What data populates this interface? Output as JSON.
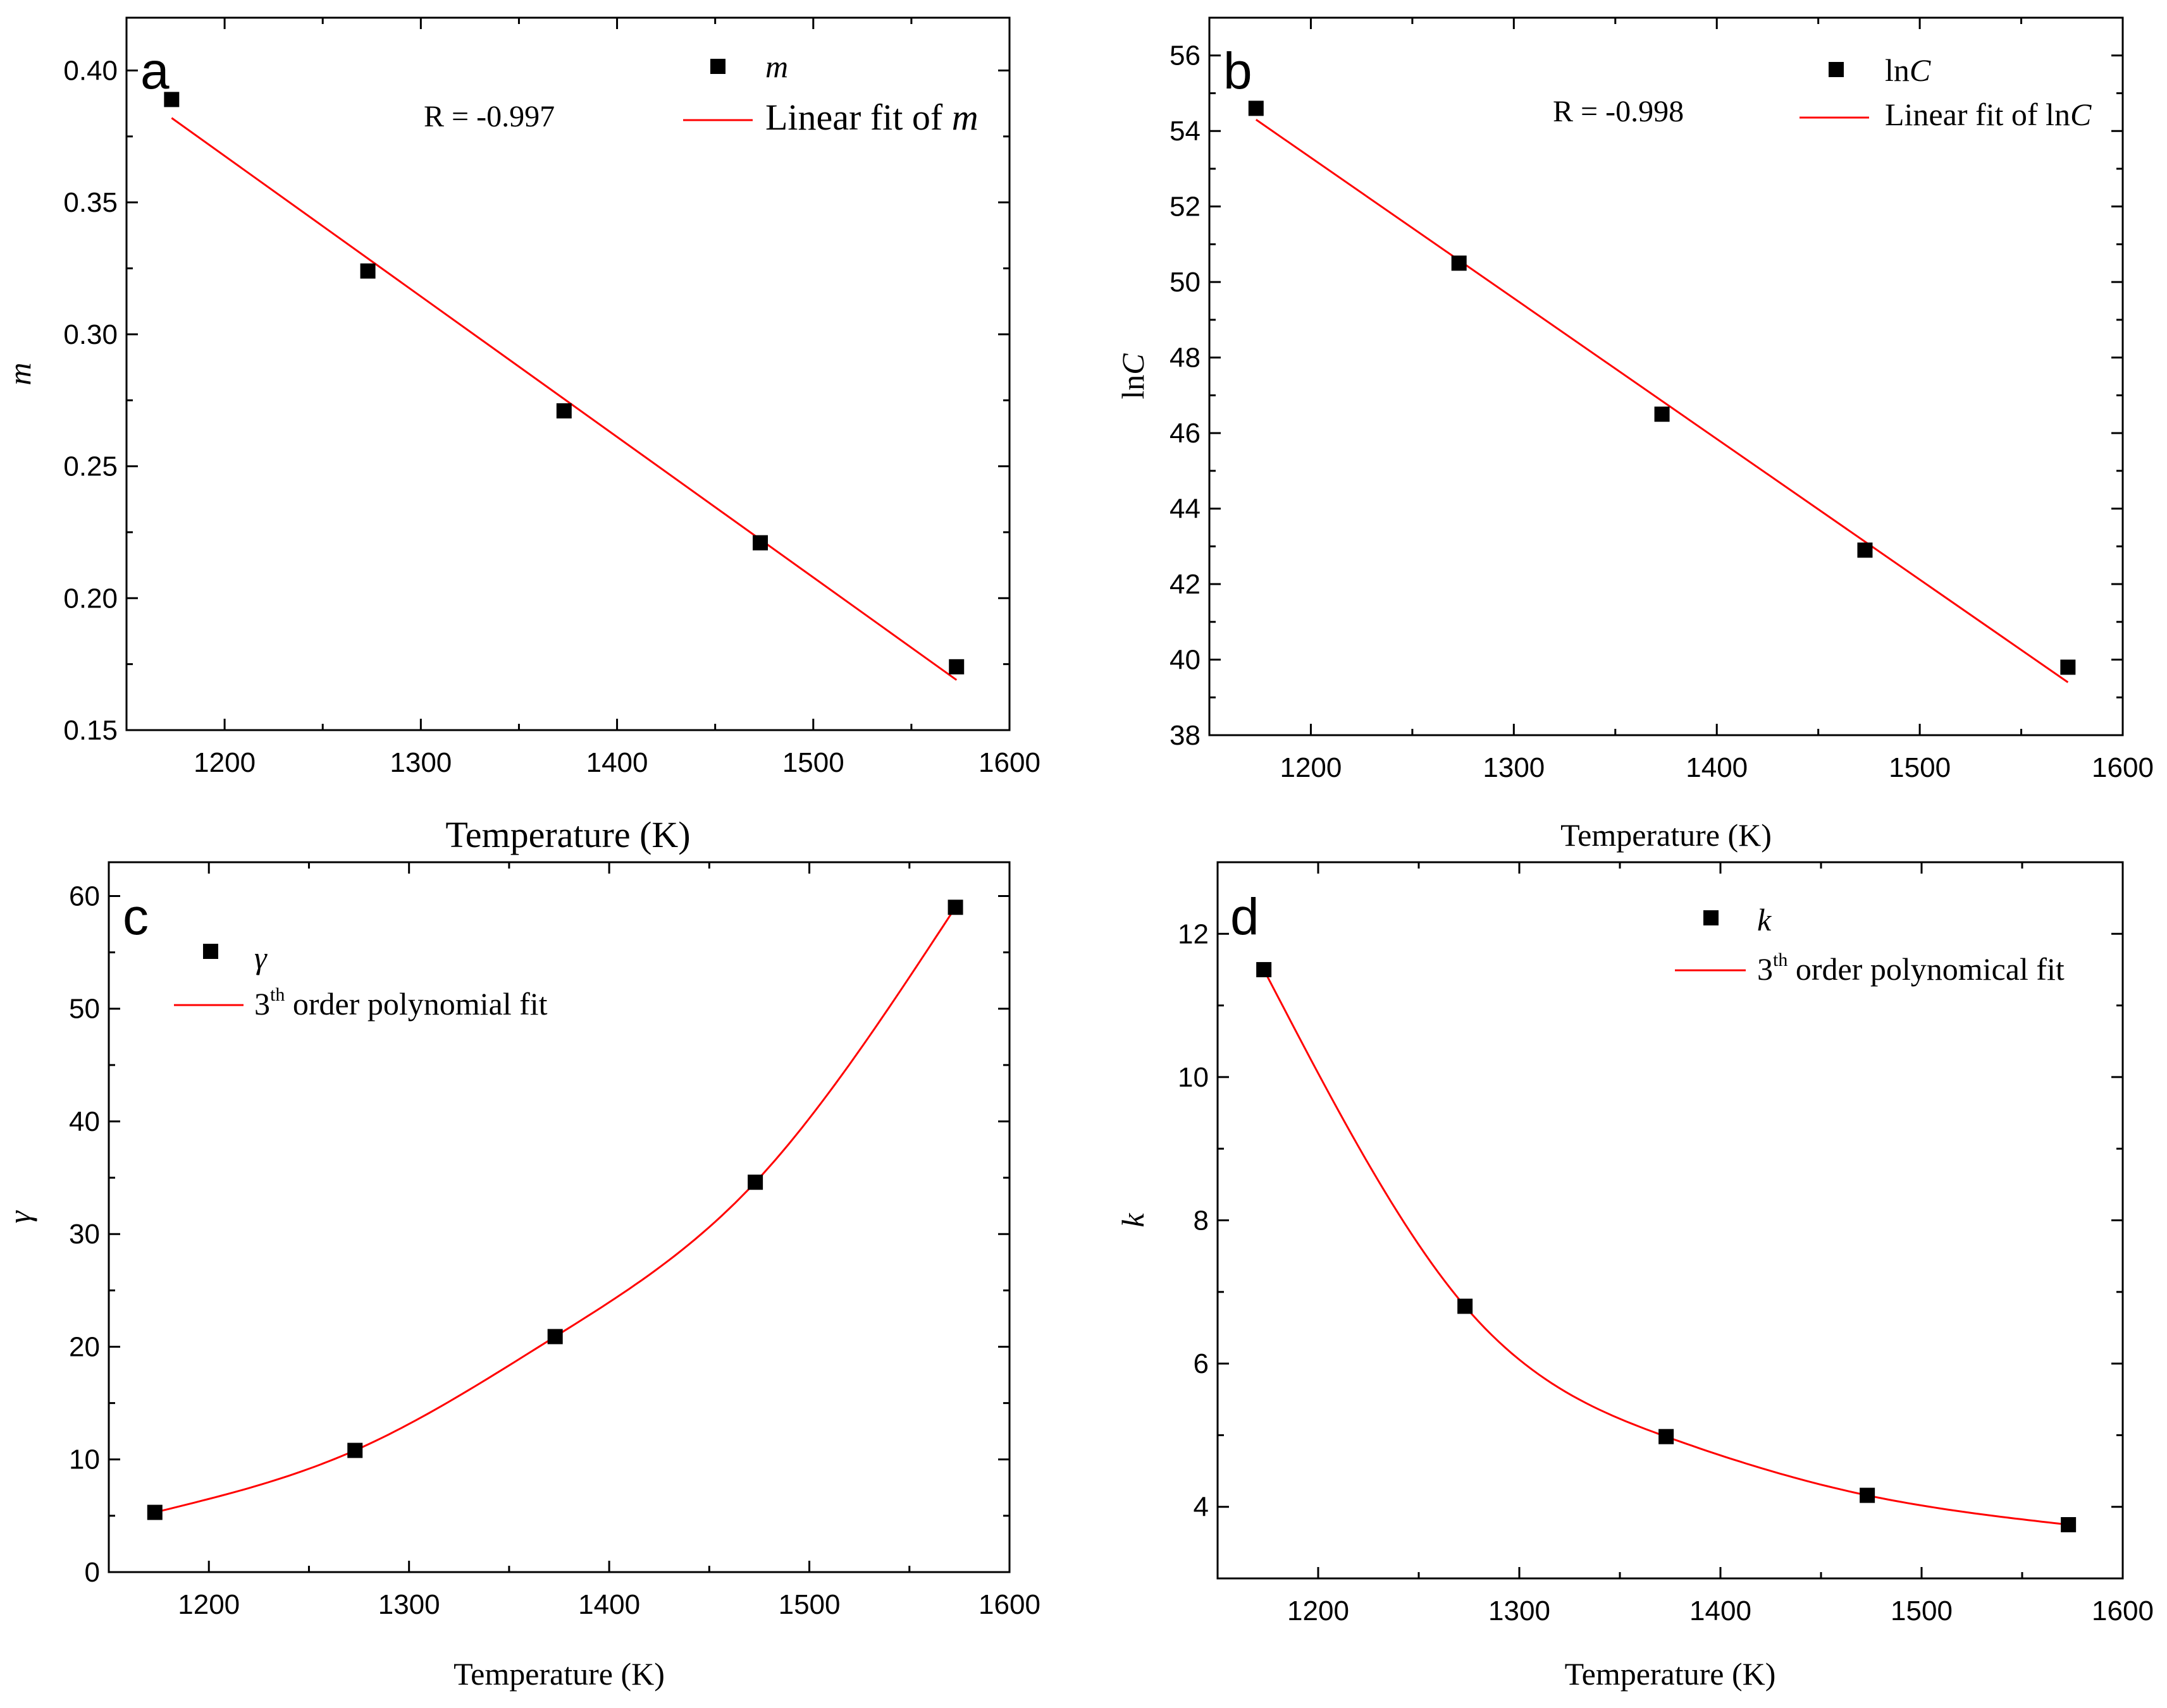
{
  "chart_data": [
    {
      "panel": "a",
      "type": "scatter",
      "x": [
        1173,
        1273,
        1373,
        1473,
        1573
      ],
      "y": [
        0.389,
        0.324,
        0.271,
        0.221,
        0.174
      ],
      "fit": {
        "kind": "linear",
        "x": [
          1173,
          1573
        ],
        "y": [
          0.382,
          0.169
        ]
      },
      "xlim": [
        1150,
        1600
      ],
      "ylim": [
        0.15,
        0.42
      ],
      "xticks": [
        "1200",
        "1300",
        "1400",
        "1500",
        "1600"
      ],
      "yticks": [
        "0.15",
        "0.20",
        "0.25",
        "0.30",
        "0.35",
        "0.40"
      ],
      "xlabel": "Temperature (K)",
      "ylabel": "m",
      "legend": {
        "marker": "m",
        "line_prefix": "Linear fit of ",
        "line_var": "m"
      },
      "annotation": "R = -0.997",
      "grid": false
    },
    {
      "panel": "b",
      "type": "scatter",
      "x": [
        1173,
        1273,
        1373,
        1473,
        1573
      ],
      "y": [
        54.6,
        50.5,
        46.5,
        42.9,
        39.8
      ],
      "fit": {
        "kind": "linear",
        "x": [
          1173,
          1573
        ],
        "y": [
          54.3,
          39.4
        ]
      },
      "xlim": [
        1150,
        1600
      ],
      "ylim": [
        38,
        57
      ],
      "xticks": [
        "1200",
        "1300",
        "1400",
        "1500",
        "1600"
      ],
      "yticks": [
        "38",
        "40",
        "42",
        "44",
        "46",
        "48",
        "50",
        "52",
        "54",
        "56"
      ],
      "xlabel": "Temperature (K)",
      "ylabel_prefix": "ln",
      "ylabel_var": "C",
      "legend": {
        "marker_prefix": "ln",
        "marker_var": "C",
        "line_prefix": "Linear fit of ln",
        "line_var": "C"
      },
      "annotation": "R = -0.998",
      "grid": false
    },
    {
      "panel": "c",
      "type": "scatter",
      "x": [
        1173,
        1273,
        1373,
        1473,
        1573
      ],
      "y": [
        5.3,
        10.8,
        20.9,
        34.6,
        59.0
      ],
      "fit": {
        "kind": "cubic",
        "x": [
          1173,
          1273,
          1373,
          1473,
          1573
        ],
        "y": [
          5.3,
          10.8,
          20.9,
          34.6,
          59.0
        ]
      },
      "xlim": [
        1150,
        1600
      ],
      "ylim": [
        0,
        63
      ],
      "xticks": [
        "1200",
        "1300",
        "1400",
        "1500",
        "1600"
      ],
      "yticks": [
        "0",
        "10",
        "20",
        "30",
        "40",
        "50",
        "60"
      ],
      "xlabel": "Temperature (K)",
      "ylabel": "γ",
      "legend": {
        "marker": "γ",
        "line_num": "3",
        "line_sup": "th",
        "line_rest": " order polynomial fit"
      },
      "grid": false
    },
    {
      "panel": "d",
      "type": "scatter",
      "x": [
        1173,
        1273,
        1373,
        1473,
        1573
      ],
      "y": [
        11.5,
        6.8,
        4.98,
        4.16,
        3.75
      ],
      "fit": {
        "kind": "cubic",
        "x": [
          1173,
          1273,
          1373,
          1473,
          1573
        ],
        "y": [
          11.5,
          6.8,
          4.98,
          4.16,
          3.75
        ]
      },
      "xlim": [
        1150,
        1600
      ],
      "ylim": [
        3.0,
        13.0
      ],
      "xticks": [
        "1200",
        "1300",
        "1400",
        "1500",
        "1600"
      ],
      "yticks": [
        "4",
        "6",
        "8",
        "10",
        "12"
      ],
      "xlabel": "Temperature (K)",
      "ylabel": "k",
      "legend": {
        "marker": "k",
        "line_num": "3",
        "line_sup": "th",
        "line_rest": " order polynomical fit"
      },
      "grid": false
    }
  ],
  "colors": {
    "fit_line": "#ff0000",
    "marker": "#000000",
    "axes": "#000000",
    "background": "#ffffff"
  }
}
